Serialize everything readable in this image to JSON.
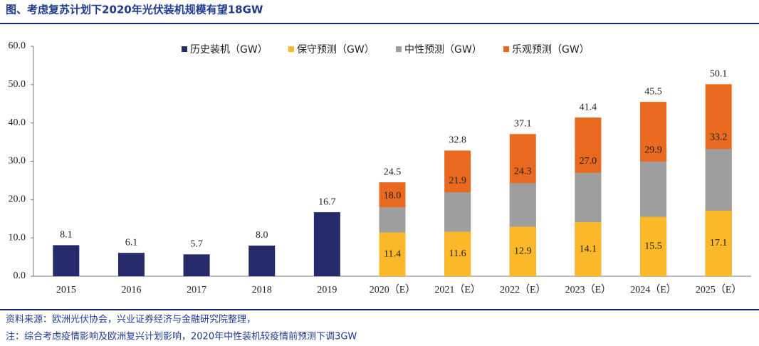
{
  "chart_data": {
    "type": "bar",
    "title": "图、考虑复苏计划下2020年光伏装机规模有望18GW",
    "source": "资料来源：欧洲光伏协会，兴业证券经济与金融研究院整理，",
    "note": "注：综合考虑疫情影响及欧洲复兴计划影响，2020年中性装机较疫情前预测下调3GW",
    "categories": [
      "2015",
      "2016",
      "2017",
      "2018",
      "2019",
      "2020（E）",
      "2021（E）",
      "2022（E）",
      "2023（E）",
      "2024（E）",
      "2025（E）"
    ],
    "series": [
      {
        "name": "历史装机（GW）",
        "color": "#252a6b",
        "values": [
          8.1,
          6.1,
          5.7,
          8.0,
          16.7,
          null,
          null,
          null,
          null,
          null,
          null
        ],
        "value_labels": [
          "8.1",
          "6.1",
          "5.7",
          "8.0",
          "16.7",
          null,
          null,
          null,
          null,
          null,
          null
        ]
      },
      {
        "name": "保守预测（GW）",
        "color": "#fbb829",
        "values": [
          null,
          null,
          null,
          null,
          null,
          11.4,
          11.6,
          12.9,
          14.1,
          15.5,
          17.1
        ],
        "value_labels": [
          null,
          null,
          null,
          null,
          null,
          "11.4",
          "11.6",
          "12.9",
          "14.1",
          "15.5",
          "17.1"
        ]
      },
      {
        "name": "中性预测（GW）",
        "color": "#9e9e9e",
        "values": [
          null,
          null,
          null,
          null,
          null,
          18.0,
          21.9,
          24.3,
          27.0,
          29.9,
          33.2
        ],
        "value_labels": [
          null,
          null,
          null,
          null,
          null,
          "18.0",
          "21.9",
          "24.3",
          "27.0",
          "29.9",
          "33.2"
        ]
      },
      {
        "name": "乐观预测（GW）",
        "color": "#e8691f",
        "values": [
          null,
          null,
          null,
          null,
          null,
          24.5,
          32.8,
          37.1,
          41.4,
          45.5,
          50.1
        ],
        "value_labels": [
          null,
          null,
          null,
          null,
          null,
          "24.5",
          "32.8",
          "37.1",
          "41.4",
          "45.5",
          "50.1"
        ]
      }
    ],
    "ylim": [
      0,
      60
    ],
    "yticks": [
      {
        "value": 0,
        "label": "0.0"
      },
      {
        "value": 10,
        "label": "10.0"
      },
      {
        "value": 20,
        "label": "20.0"
      },
      {
        "value": 30,
        "label": "30.0"
      },
      {
        "value": 40,
        "label": "40.0"
      },
      {
        "value": 50,
        "label": "50.0"
      },
      {
        "value": 60,
        "label": "60.0"
      }
    ],
    "legend": "top"
  }
}
